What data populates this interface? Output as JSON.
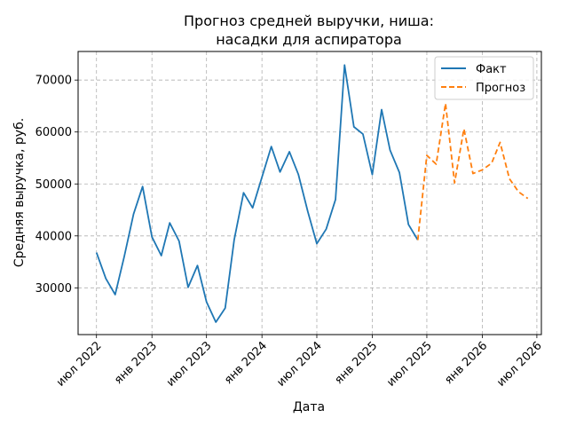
{
  "chart_data": {
    "type": "line",
    "title_line1": "Прогноз средней выручки, ниша:",
    "title_line2": "насадки для аспиратора",
    "xlabel": "Дата",
    "ylabel": "Средняя выручка, руб.",
    "ylim": [
      21000,
      75500
    ],
    "xlim": [
      "2022-05-01",
      "2026-07-16"
    ],
    "grid": true,
    "legend_position": "top-right",
    "y_ticks": [
      30000,
      40000,
      50000,
      60000,
      70000
    ],
    "x_ticks": [
      {
        "date": "2022-07-01",
        "label": "июл 2022"
      },
      {
        "date": "2023-01-01",
        "label": "янв 2023"
      },
      {
        "date": "2023-07-01",
        "label": "июл 2023"
      },
      {
        "date": "2024-01-01",
        "label": "янв 2024"
      },
      {
        "date": "2024-07-01",
        "label": "июл 2024"
      },
      {
        "date": "2025-01-01",
        "label": "янв 2025"
      },
      {
        "date": "2025-07-01",
        "label": "июл 2025"
      },
      {
        "date": "2026-01-01",
        "label": "янв 2026"
      },
      {
        "date": "2026-07-01",
        "label": "июл 2026"
      }
    ],
    "series": [
      {
        "name": "Факт",
        "color": "#1f77b4",
        "style": "solid",
        "x": [
          "2022-07-01",
          "2022-08-01",
          "2022-09-01",
          "2022-10-01",
          "2022-11-01",
          "2022-12-01",
          "2023-01-01",
          "2023-02-01",
          "2023-03-01",
          "2023-04-01",
          "2023-05-01",
          "2023-06-01",
          "2023-07-01",
          "2023-08-01",
          "2023-09-01",
          "2023-10-01",
          "2023-11-01",
          "2023-12-01",
          "2024-01-01",
          "2024-02-01",
          "2024-03-01",
          "2024-04-01",
          "2024-05-01",
          "2024-06-01",
          "2024-07-01",
          "2024-08-01",
          "2024-09-01",
          "2024-10-01",
          "2024-11-01",
          "2024-12-01",
          "2025-01-01",
          "2025-02-01",
          "2025-03-01",
          "2025-04-01",
          "2025-05-01",
          "2025-06-01"
        ],
        "values": [
          36800,
          31800,
          28700,
          36000,
          44200,
          49500,
          39800,
          36200,
          42500,
          39000,
          30100,
          34300,
          27300,
          23400,
          26100,
          39300,
          48300,
          45400,
          51300,
          57200,
          52300,
          56200,
          51800,
          44700,
          38500,
          41300,
          47000,
          72900,
          61000,
          59600,
          51800,
          64300,
          56500,
          52200,
          42200,
          39200
        ]
      },
      {
        "name": "Прогноз",
        "color": "#ff7f0e",
        "style": "dashed",
        "x": [
          "2025-06-01",
          "2025-07-01",
          "2025-08-01",
          "2025-09-01",
          "2025-10-01",
          "2025-11-01",
          "2025-12-01",
          "2026-01-01",
          "2026-02-01",
          "2026-03-01",
          "2026-04-01",
          "2026-05-01",
          "2026-06-01"
        ],
        "values": [
          39200,
          55500,
          53800,
          65500,
          50200,
          60600,
          52000,
          52700,
          54000,
          58000,
          51000,
          48500,
          47200
        ]
      }
    ]
  }
}
